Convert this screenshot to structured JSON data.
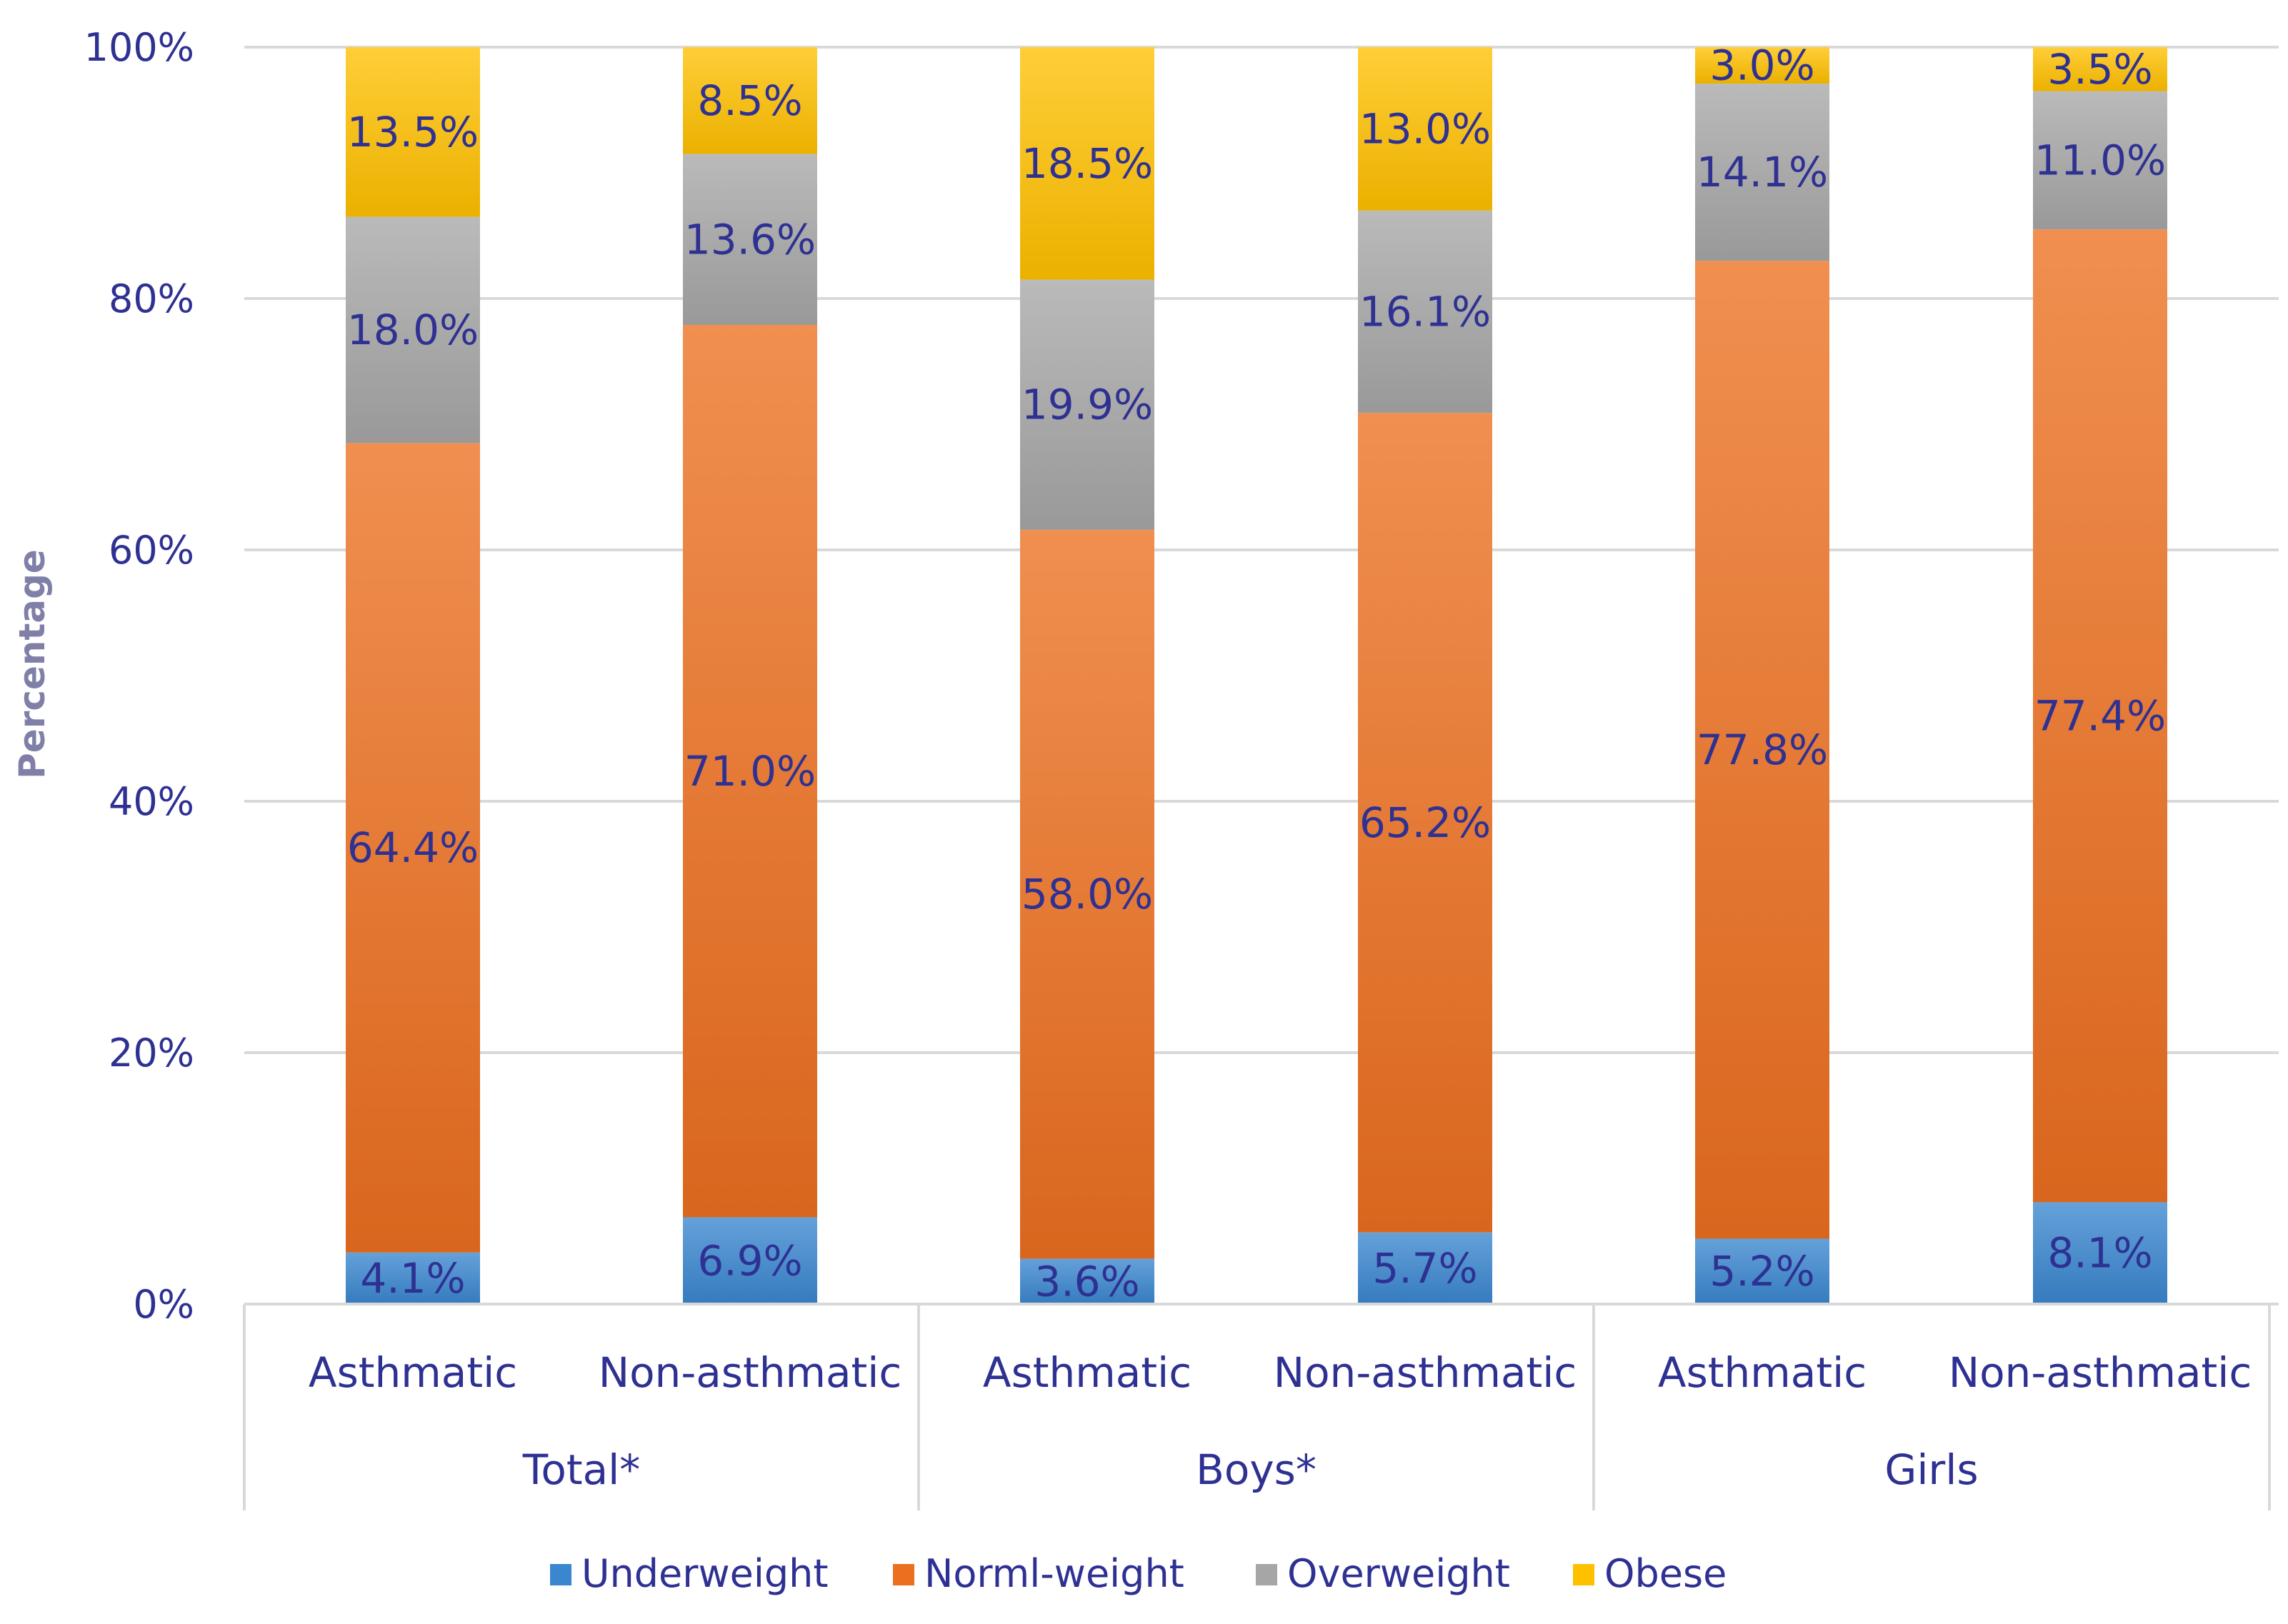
{
  "chart_data": {
    "type": "bar",
    "stacked": true,
    "percent_stacked": true,
    "ylabel": "Percentage",
    "ylim": [
      0,
      100
    ],
    "yticks": [
      "0%",
      "20%",
      "40%",
      "60%",
      "80%",
      "100%"
    ],
    "grid": true,
    "legend_position": "bottom",
    "groups": [
      {
        "label": "Total*",
        "categories": [
          "Asthmatic",
          "Non-asthmatic"
        ]
      },
      {
        "label": "Boys*",
        "categories": [
          "Asthmatic",
          "Non-asthmatic"
        ]
      },
      {
        "label": "Girls",
        "categories": [
          "Asthmatic",
          "Non-asthmatic"
        ]
      }
    ],
    "series": [
      {
        "name": "Underweight",
        "color": "#3a86cf",
        "values": [
          4.1,
          6.9,
          3.6,
          5.7,
          5.2,
          8.1
        ],
        "labels": [
          "4.1%",
          "6.9%",
          "3.6%",
          "5.7%",
          "5.2%",
          "8.1%"
        ]
      },
      {
        "name": "Norml-weight",
        "color": "#ec6f1f",
        "values": [
          64.4,
          71.0,
          58.0,
          65.2,
          77.8,
          77.4
        ],
        "labels": [
          "64.4%",
          "71.0%",
          "58.0%",
          "65.2%",
          "77.8%",
          "77.4%"
        ]
      },
      {
        "name": "Overweight",
        "color": "#a6a6a6",
        "values": [
          18.0,
          13.6,
          19.9,
          16.1,
          14.1,
          11.0
        ],
        "labels": [
          "18.0%",
          "13.6%",
          "19.9%",
          "16.1%",
          "14.1%",
          "11.0%"
        ]
      },
      {
        "name": "Obese",
        "color": "#ffc000",
        "values": [
          13.5,
          8.5,
          18.5,
          13.0,
          3.0,
          3.5
        ],
        "labels": [
          "13.5%",
          "8.5%",
          "18.5%",
          "13.0%",
          "3.0%",
          "3.5%"
        ]
      }
    ]
  }
}
